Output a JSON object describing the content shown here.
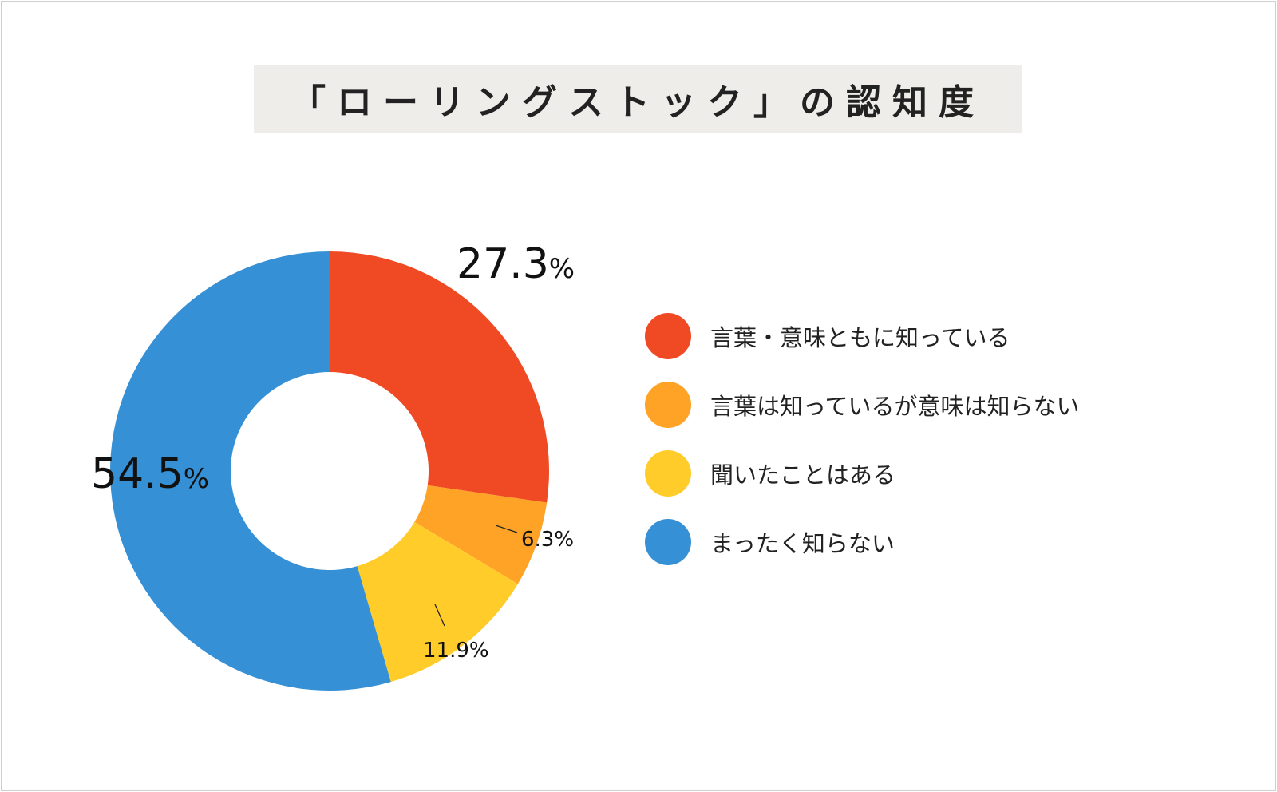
{
  "title": "「ローリングストック」の認知度",
  "chart_data": {
    "type": "pie",
    "title": "「ローリングストック」の認知度",
    "categories": [
      "言葉・意味ともに知っている",
      "言葉は知っているが意味は知らない",
      "聞いたことはある",
      "まったく知らない"
    ],
    "values": [
      27.3,
      6.3,
      11.9,
      54.5
    ],
    "value_labels": [
      "27.3",
      "6.3",
      "11.9",
      "54.5"
    ],
    "unit": "%",
    "colors": [
      "#f04a24",
      "#ffa326",
      "#ffcc2a",
      "#3690d5"
    ],
    "style": "donut",
    "start": "12 o'clock, clockwise",
    "legend_position": "right"
  }
}
